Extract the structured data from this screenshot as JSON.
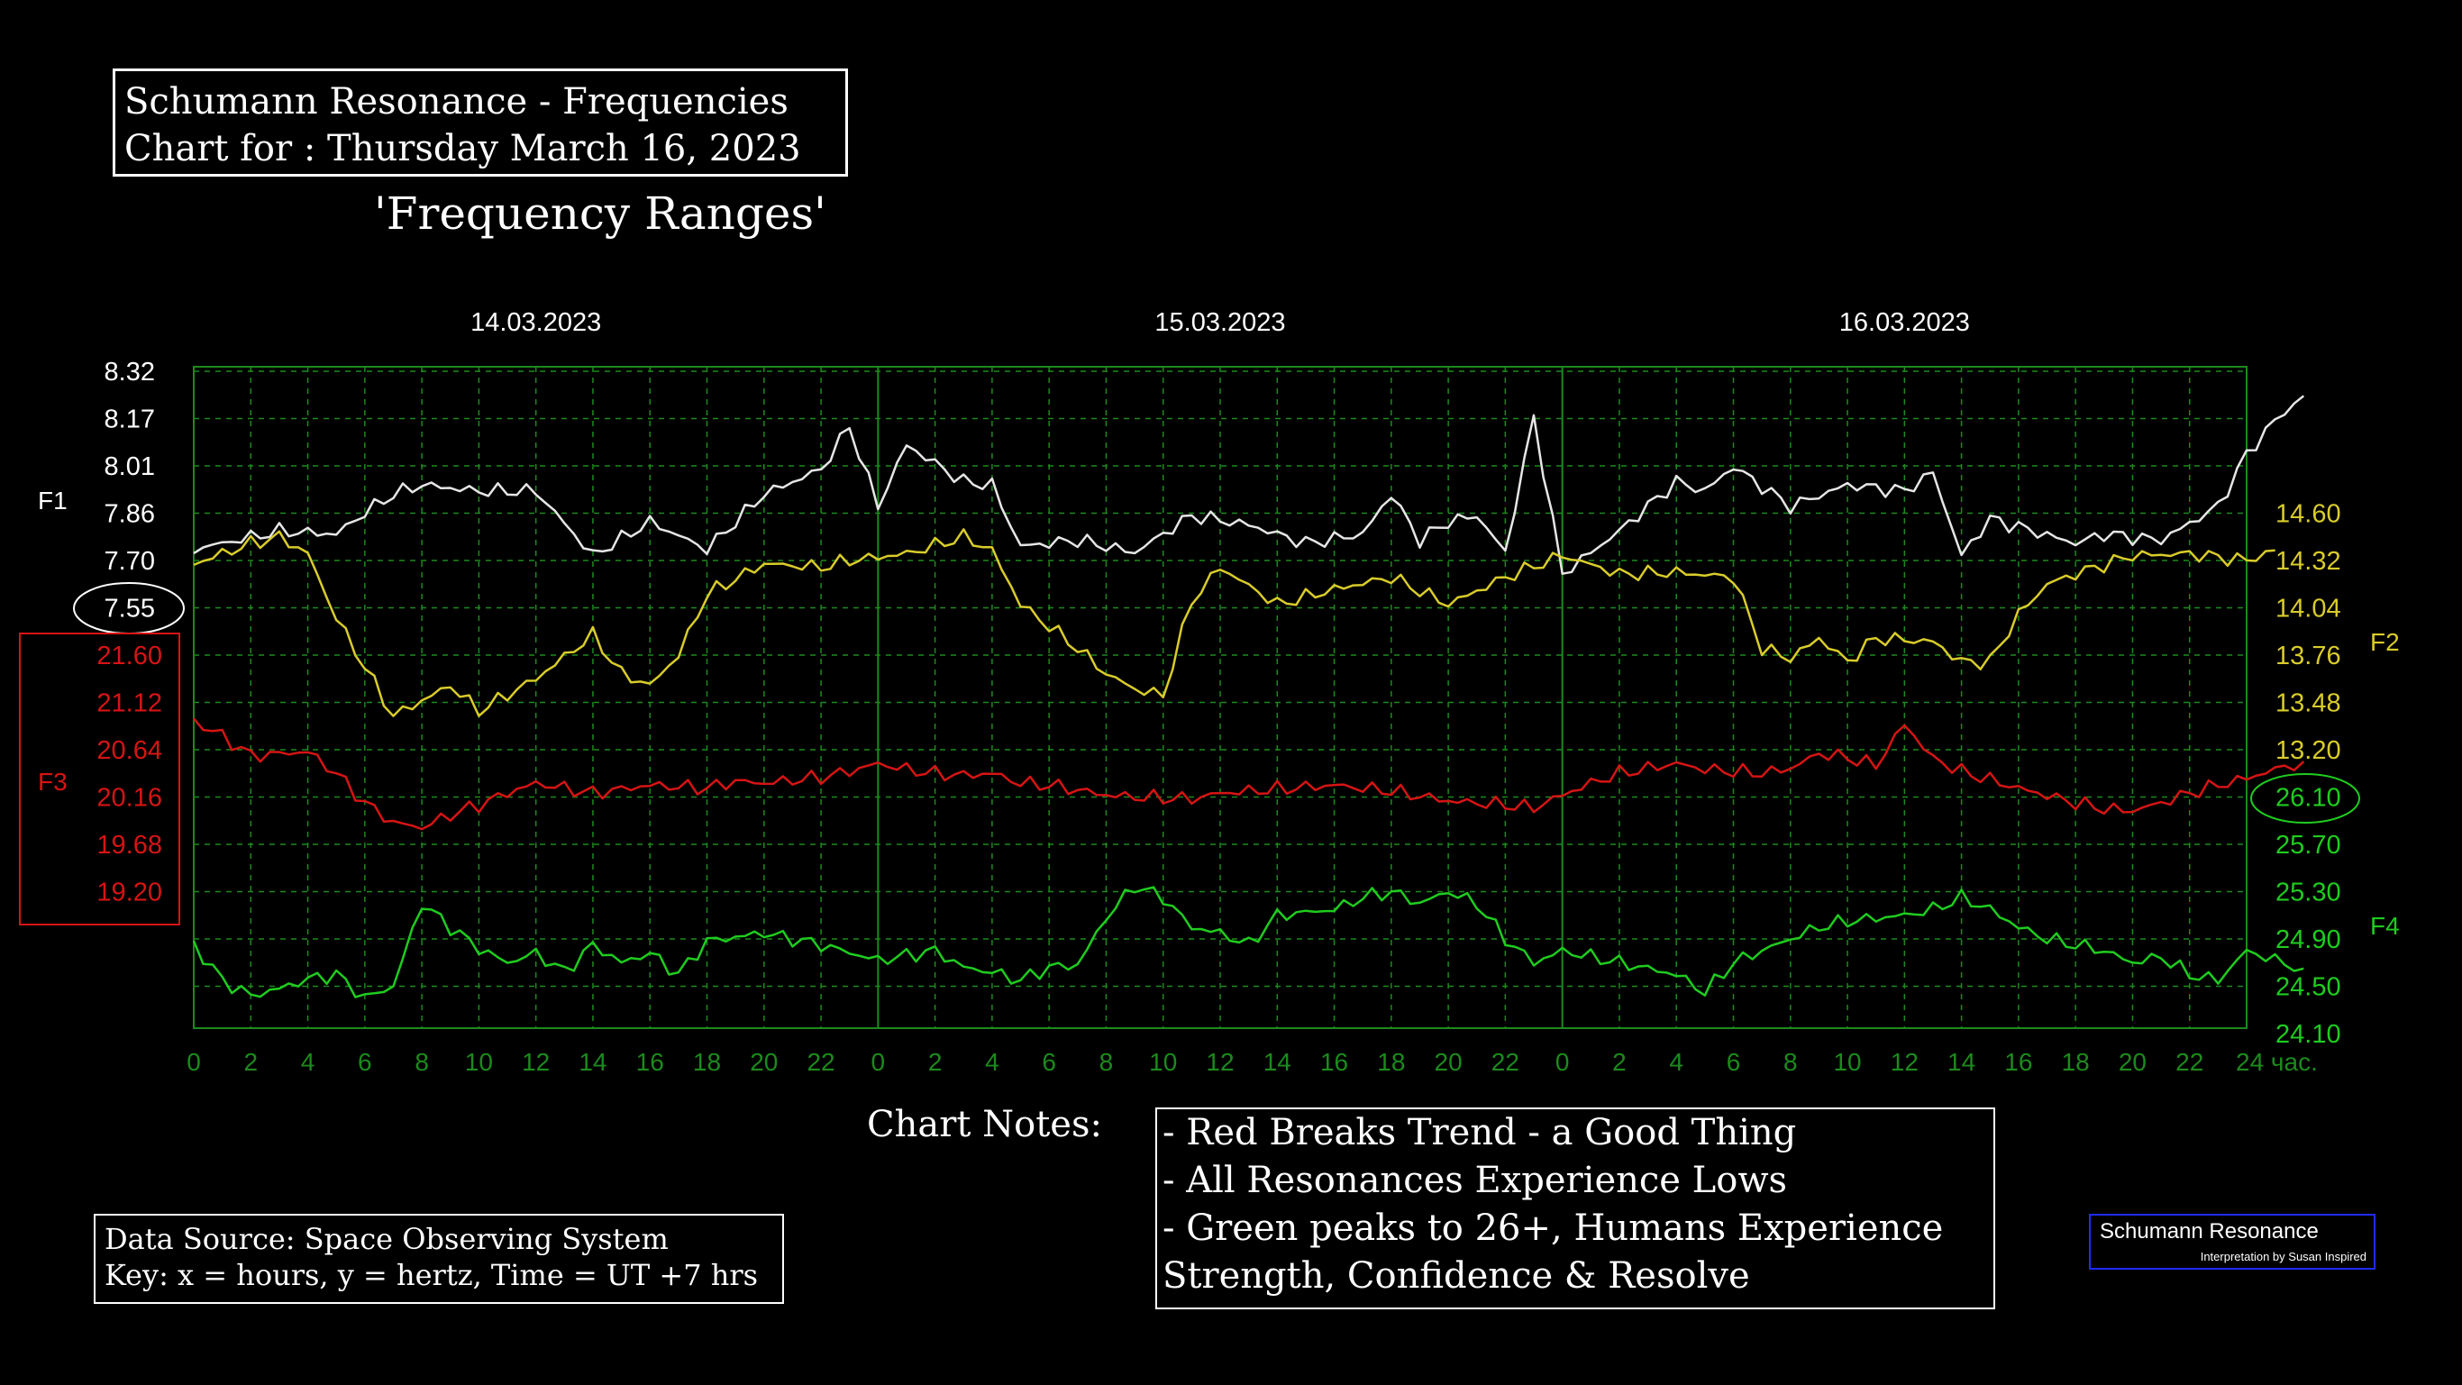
{
  "header": {
    "title_line1": "Schumann Resonance - Frequencies",
    "title_line2": "Chart for :  Thursday March 16, 2023",
    "subtitle": "'Frequency Ranges'"
  },
  "notes": {
    "heading": "Chart Notes:",
    "lines": [
      "- Red Breaks Trend - a Good Thing",
      "- All Resonances Experience Lows",
      "- Green peaks to 26+, Humans Experience",
      "Strength, Confidence & Resolve"
    ]
  },
  "source": {
    "line1": "Data Source: Space Observing System",
    "line2": "Key: x = hours, y = hertz, Time = UT +7 hrs"
  },
  "logo": {
    "title": "Schumann Resonance",
    "subtitle": "Interpretation by Susan Inspired"
  },
  "colors": {
    "f1": "#e6e6e6",
    "f2": "#d9cc2a",
    "f3": "#d61414",
    "f4": "#1fcc1f",
    "grid": "#1d8a1d",
    "dates": "#ffffff",
    "highlight_f1": "#ffffff",
    "highlight_f4": "#1fcc1f",
    "logo_border": "#1f2cff"
  },
  "chart_data": {
    "type": "line",
    "dates": [
      "14.03.2023",
      "15.03.2023",
      "16.03.2023"
    ],
    "x_ticks": [
      "0",
      "2",
      "4",
      "6",
      "8",
      "10",
      "12",
      "14",
      "16",
      "18",
      "20",
      "22",
      "0",
      "2",
      "4",
      "6",
      "8",
      "10",
      "12",
      "14",
      "16",
      "18",
      "20",
      "22",
      "0",
      "2",
      "4",
      "6",
      "8",
      "10",
      "12",
      "14",
      "16",
      "18",
      "20",
      "22",
      "24 час."
    ],
    "axes": {
      "F1": {
        "label": "F1",
        "ticks": [
          "8.32",
          "8.17",
          "8.01",
          "7.86",
          "7.70",
          "7.55"
        ],
        "highlight": "7.55"
      },
      "F3": {
        "label": "F3",
        "ticks": [
          "21.60",
          "21.12",
          "20.64",
          "20.16",
          "19.68",
          "19.20"
        ]
      },
      "F2": {
        "label": "F2",
        "ticks": [
          "14.60",
          "14.32",
          "14.04",
          "13.76",
          "13.48",
          "13.20"
        ]
      },
      "F4": {
        "label": "F4",
        "ticks": [
          "26.10",
          "25.70",
          "25.30",
          "24.90",
          "24.50",
          "24.10"
        ],
        "highlight": "26.10"
      }
    },
    "xlabel": "",
    "ylabel": "",
    "xlim": [
      0,
      72
    ],
    "grid": true,
    "series": [
      {
        "key": "F1",
        "points": [
          [
            0,
            7.74
          ],
          [
            3,
            7.8
          ],
          [
            5,
            7.79
          ],
          [
            6,
            7.86
          ],
          [
            7,
            7.92
          ],
          [
            8,
            7.95
          ],
          [
            10,
            7.93
          ],
          [
            12,
            7.93
          ],
          [
            14,
            7.72
          ],
          [
            16,
            7.83
          ],
          [
            18,
            7.74
          ],
          [
            20,
            7.92
          ],
          [
            22,
            8.0
          ],
          [
            23,
            8.14
          ],
          [
            24,
            7.88
          ],
          [
            25,
            8.08
          ],
          [
            27,
            7.96
          ],
          [
            28,
            7.95
          ],
          [
            29,
            7.75
          ],
          [
            31,
            7.77
          ],
          [
            33,
            7.73
          ],
          [
            35,
            7.85
          ],
          [
            37,
            7.82
          ],
          [
            39,
            7.76
          ],
          [
            41,
            7.79
          ],
          [
            42,
            7.92
          ],
          [
            43,
            7.77
          ],
          [
            44,
            7.83
          ],
          [
            45,
            7.85
          ],
          [
            46,
            7.73
          ],
          [
            47,
            8.17
          ],
          [
            48,
            7.66
          ],
          [
            50,
            7.8
          ],
          [
            51,
            7.88
          ],
          [
            52,
            7.96
          ],
          [
            53,
            7.93
          ],
          [
            54,
            8.01
          ],
          [
            56,
            7.88
          ],
          [
            58,
            7.95
          ],
          [
            60,
            7.93
          ],
          [
            61,
            7.99
          ],
          [
            62,
            7.72
          ],
          [
            63,
            7.84
          ],
          [
            66,
            7.76
          ],
          [
            67,
            7.79
          ],
          [
            69,
            7.77
          ],
          [
            71,
            7.88
          ],
          [
            72,
            8.05
          ],
          [
            73,
            8.16
          ],
          [
            74,
            8.24
          ]
        ]
      },
      {
        "key": "F2",
        "points": [
          [
            0,
            14.3
          ],
          [
            2,
            14.42
          ],
          [
            3,
            14.46
          ],
          [
            4,
            14.36
          ],
          [
            5,
            13.98
          ],
          [
            7,
            13.4
          ],
          [
            9,
            13.58
          ],
          [
            10,
            13.43
          ],
          [
            12,
            13.62
          ],
          [
            14,
            13.88
          ],
          [
            15,
            13.65
          ],
          [
            16,
            13.58
          ],
          [
            17,
            13.76
          ],
          [
            18,
            14.12
          ],
          [
            20,
            14.3
          ],
          [
            22,
            14.28
          ],
          [
            23,
            14.32
          ],
          [
            25,
            14.36
          ],
          [
            27,
            14.46
          ],
          [
            28,
            14.38
          ],
          [
            29,
            14.06
          ],
          [
            31,
            13.8
          ],
          [
            32,
            13.65
          ],
          [
            33,
            13.56
          ],
          [
            34,
            13.52
          ],
          [
            35,
            14.08
          ],
          [
            36,
            14.28
          ],
          [
            38,
            14.06
          ],
          [
            40,
            14.15
          ],
          [
            42,
            14.22
          ],
          [
            44,
            14.06
          ],
          [
            46,
            14.22
          ],
          [
            48,
            14.35
          ],
          [
            50,
            14.24
          ],
          [
            52,
            14.25
          ],
          [
            54,
            14.22
          ],
          [
            55,
            13.8
          ],
          [
            56,
            13.74
          ],
          [
            57,
            13.86
          ],
          [
            58,
            13.72
          ],
          [
            59,
            13.86
          ],
          [
            61,
            13.84
          ],
          [
            62,
            13.72
          ],
          [
            63,
            13.72
          ],
          [
            64,
            14.0
          ],
          [
            65,
            14.18
          ],
          [
            66,
            14.24
          ],
          [
            68,
            14.35
          ],
          [
            70,
            14.36
          ],
          [
            72,
            14.32
          ],
          [
            73,
            14.38
          ]
        ]
      },
      {
        "key": "F3",
        "points": [
          [
            0,
            20.93
          ],
          [
            1,
            20.78
          ],
          [
            2,
            20.58
          ],
          [
            3,
            20.6
          ],
          [
            4,
            20.62
          ],
          [
            5,
            20.4
          ],
          [
            6,
            20.1
          ],
          [
            7,
            19.9
          ],
          [
            8,
            19.85
          ],
          [
            9,
            19.98
          ],
          [
            10,
            20.08
          ],
          [
            11,
            20.2
          ],
          [
            12,
            20.3
          ],
          [
            14,
            20.2
          ],
          [
            16,
            20.28
          ],
          [
            18,
            20.25
          ],
          [
            19,
            20.32
          ],
          [
            20,
            20.3
          ],
          [
            22,
            20.36
          ],
          [
            23,
            20.42
          ],
          [
            24,
            20.5
          ],
          [
            25,
            20.44
          ],
          [
            26,
            20.4
          ],
          [
            27,
            20.38
          ],
          [
            28,
            20.4
          ],
          [
            29,
            20.3
          ],
          [
            30,
            20.28
          ],
          [
            32,
            20.18
          ],
          [
            33,
            20.16
          ],
          [
            34,
            20.15
          ],
          [
            35,
            20.14
          ],
          [
            36,
            20.2
          ],
          [
            38,
            20.24
          ],
          [
            40,
            20.28
          ],
          [
            42,
            20.22
          ],
          [
            44,
            20.12
          ],
          [
            46,
            20.08
          ],
          [
            47,
            20.05
          ],
          [
            48,
            20.18
          ],
          [
            49,
            20.3
          ],
          [
            50,
            20.4
          ],
          [
            52,
            20.5
          ],
          [
            53,
            20.44
          ],
          [
            54,
            20.42
          ],
          [
            55,
            20.4
          ],
          [
            56,
            20.45
          ],
          [
            57,
            20.6
          ],
          [
            58,
            20.56
          ],
          [
            59,
            20.48
          ],
          [
            60,
            20.9
          ],
          [
            61,
            20.55
          ],
          [
            62,
            20.42
          ],
          [
            64,
            20.25
          ],
          [
            66,
            20.1
          ],
          [
            67,
            20.04
          ],
          [
            68,
            20.02
          ],
          [
            69,
            20.1
          ],
          [
            70,
            20.2
          ],
          [
            71,
            20.28
          ],
          [
            72,
            20.35
          ],
          [
            73,
            20.44
          ],
          [
            74,
            20.52
          ]
        ]
      },
      {
        "key": "F4",
        "points": [
          [
            0,
            24.85
          ],
          [
            1,
            24.55
          ],
          [
            2,
            24.42
          ],
          [
            3,
            24.48
          ],
          [
            4,
            24.56
          ],
          [
            5,
            24.6
          ],
          [
            6,
            24.4
          ],
          [
            7,
            24.5
          ],
          [
            8,
            25.2
          ],
          [
            9,
            25.0
          ],
          [
            10,
            24.82
          ],
          [
            11,
            24.7
          ],
          [
            12,
            24.78
          ],
          [
            13,
            24.62
          ],
          [
            14,
            24.85
          ],
          [
            15,
            24.7
          ],
          [
            16,
            24.78
          ],
          [
            17,
            24.6
          ],
          [
            18,
            24.88
          ],
          [
            20,
            24.95
          ],
          [
            22,
            24.85
          ],
          [
            24,
            24.72
          ],
          [
            26,
            24.8
          ],
          [
            27,
            24.66
          ],
          [
            28,
            24.62
          ],
          [
            29,
            24.55
          ],
          [
            30,
            24.66
          ],
          [
            31,
            24.68
          ],
          [
            32,
            25.08
          ],
          [
            33,
            25.35
          ],
          [
            34,
            25.25
          ],
          [
            35,
            25.0
          ],
          [
            36,
            24.95
          ],
          [
            37,
            24.85
          ],
          [
            38,
            25.1
          ],
          [
            40,
            25.15
          ],
          [
            41,
            25.25
          ],
          [
            42,
            25.3
          ],
          [
            43,
            25.2
          ],
          [
            44,
            25.3
          ],
          [
            45,
            25.2
          ],
          [
            46,
            24.9
          ],
          [
            47,
            24.7
          ],
          [
            48,
            24.8
          ],
          [
            50,
            24.7
          ],
          [
            52,
            24.6
          ],
          [
            53,
            24.45
          ],
          [
            54,
            24.7
          ],
          [
            55,
            24.8
          ],
          [
            56,
            24.9
          ],
          [
            57,
            25.0
          ],
          [
            58,
            25.05
          ],
          [
            60,
            25.1
          ],
          [
            61,
            25.15
          ],
          [
            62,
            25.25
          ],
          [
            63,
            25.15
          ],
          [
            64,
            25.0
          ],
          [
            65,
            24.9
          ],
          [
            66,
            24.85
          ],
          [
            67,
            24.8
          ],
          [
            68,
            24.7
          ],
          [
            69,
            24.75
          ],
          [
            70,
            24.6
          ],
          [
            71,
            24.55
          ],
          [
            72,
            24.8
          ],
          [
            73,
            24.72
          ],
          [
            74,
            24.65
          ]
        ]
      }
    ]
  }
}
